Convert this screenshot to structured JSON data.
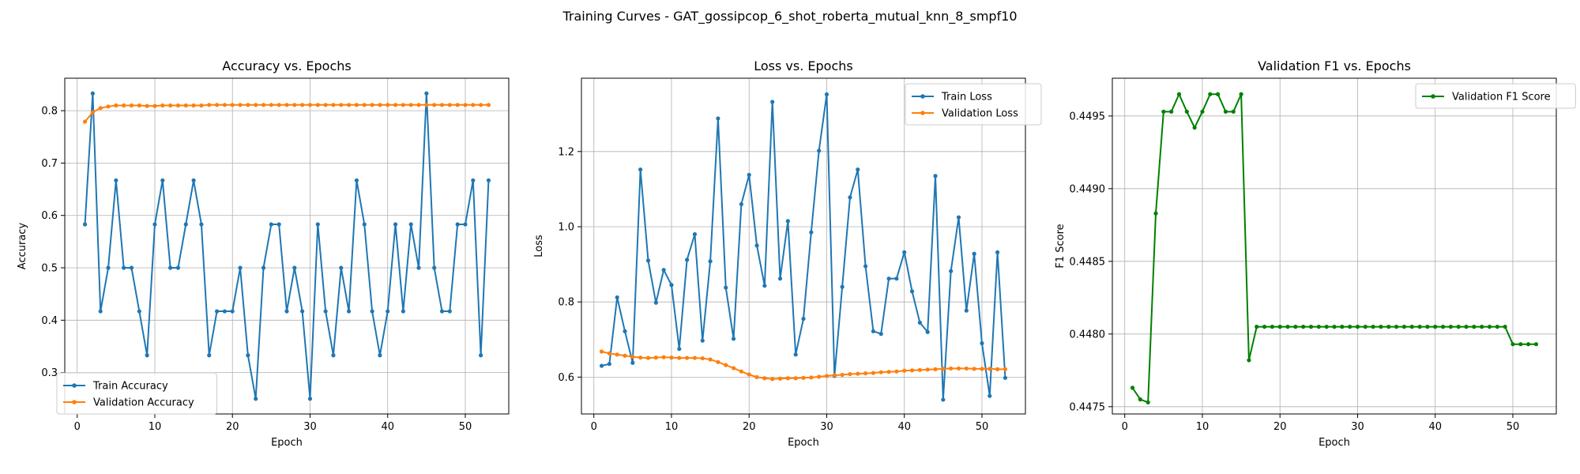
{
  "suptitle": "Training Curves - GAT_gossipcop_6_shot_roberta_mutual_knn_8_smpf10",
  "colors": {
    "blue": "#1f77b4",
    "orange": "#ff7f0e",
    "green": "#008000",
    "grid": "#b0b0b0"
  },
  "chart_data": [
    {
      "type": "line",
      "title": "Accuracy vs. Epochs",
      "xlabel": "Epoch",
      "ylabel": "Accuracy",
      "xlim": [
        -1.6,
        55.6
      ],
      "ylim": [
        0.221,
        0.862
      ],
      "xticks": [
        0,
        10,
        20,
        30,
        40,
        50
      ],
      "yticks": [
        0.3,
        0.4,
        0.5,
        0.6,
        0.7,
        0.8
      ],
      "ytick_labels": [
        "0.3",
        "0.4",
        "0.5",
        "0.6",
        "0.7",
        "0.8"
      ],
      "grid": true,
      "legend": "lower-left",
      "x": [
        1,
        2,
        3,
        4,
        5,
        6,
        7,
        8,
        9,
        10,
        11,
        12,
        13,
        14,
        15,
        16,
        17,
        18,
        19,
        20,
        21,
        22,
        23,
        24,
        25,
        26,
        27,
        28,
        29,
        30,
        31,
        32,
        33,
        34,
        35,
        36,
        37,
        38,
        39,
        40,
        41,
        42,
        43,
        44,
        45,
        46,
        47,
        48,
        49,
        50,
        51,
        52,
        53
      ],
      "series": [
        {
          "name": "Train Accuracy",
          "color": "blue",
          "values": [
            0.583,
            0.833,
            0.417,
            0.5,
            0.667,
            0.5,
            0.5,
            0.417,
            0.333,
            0.583,
            0.667,
            0.5,
            0.5,
            0.583,
            0.667,
            0.583,
            0.333,
            0.417,
            0.417,
            0.417,
            0.5,
            0.333,
            0.25,
            0.5,
            0.583,
            0.583,
            0.417,
            0.5,
            0.417,
            0.25,
            0.583,
            0.417,
            0.333,
            0.5,
            0.417,
            0.667,
            0.583,
            0.417,
            0.333,
            0.417,
            0.583,
            0.417,
            0.583,
            0.5,
            0.833,
            0.5,
            0.417,
            0.417,
            0.583,
            0.583,
            0.667,
            0.333,
            0.667
          ]
        },
        {
          "name": "Validation Accuracy",
          "color": "orange",
          "values": [
            0.779,
            0.797,
            0.805,
            0.808,
            0.81,
            0.81,
            0.81,
            0.81,
            0.809,
            0.809,
            0.81,
            0.81,
            0.81,
            0.81,
            0.81,
            0.81,
            0.811,
            0.811,
            0.811,
            0.811,
            0.811,
            0.811,
            0.811,
            0.811,
            0.811,
            0.811,
            0.811,
            0.811,
            0.811,
            0.811,
            0.811,
            0.811,
            0.811,
            0.811,
            0.811,
            0.811,
            0.811,
            0.811,
            0.811,
            0.811,
            0.811,
            0.811,
            0.811,
            0.811,
            0.811,
            0.811,
            0.811,
            0.811,
            0.811,
            0.811,
            0.811,
            0.811,
            0.811
          ]
        }
      ]
    },
    {
      "type": "line",
      "title": "Loss vs. Epochs",
      "xlabel": "Epoch",
      "ylabel": "Loss",
      "xlim": [
        -1.6,
        55.6
      ],
      "ylim": [
        0.502,
        1.395
      ],
      "xticks": [
        0,
        10,
        20,
        30,
        40,
        50
      ],
      "yticks": [
        0.6,
        0.8,
        1.0,
        1.2
      ],
      "ytick_labels": [
        "0.6",
        "0.8",
        "1.0",
        "1.2"
      ],
      "grid": true,
      "legend": "upper-right",
      "x": [
        1,
        2,
        3,
        4,
        5,
        6,
        7,
        8,
        9,
        10,
        11,
        12,
        13,
        14,
        15,
        16,
        17,
        18,
        19,
        20,
        21,
        22,
        23,
        24,
        25,
        26,
        27,
        28,
        29,
        30,
        31,
        32,
        33,
        34,
        35,
        36,
        37,
        38,
        39,
        40,
        41,
        42,
        43,
        44,
        45,
        46,
        47,
        48,
        49,
        50,
        51,
        52,
        53
      ],
      "series": [
        {
          "name": "Train Loss",
          "color": "blue",
          "values": [
            0.63,
            0.635,
            0.812,
            0.722,
            0.638,
            1.152,
            0.91,
            0.798,
            0.885,
            0.845,
            0.675,
            0.912,
            0.98,
            0.697,
            0.908,
            1.288,
            0.838,
            0.702,
            1.06,
            1.138,
            0.95,
            0.843,
            1.332,
            0.862,
            1.015,
            0.66,
            0.755,
            0.985,
            1.202,
            1.352,
            0.603,
            0.84,
            1.078,
            1.152,
            0.895,
            0.722,
            0.715,
            0.862,
            0.862,
            0.932,
            0.828,
            0.745,
            0.72,
            1.135,
            0.54,
            0.882,
            1.025,
            0.777,
            0.928,
            0.69,
            0.55,
            0.932,
            0.598
          ]
        },
        {
          "name": "Validation Loss",
          "color": "orange",
          "values": [
            0.668,
            0.663,
            0.66,
            0.657,
            0.654,
            0.652,
            0.651,
            0.652,
            0.653,
            0.652,
            0.651,
            0.651,
            0.651,
            0.65,
            0.647,
            0.64,
            0.632,
            0.624,
            0.615,
            0.607,
            0.6,
            0.597,
            0.595,
            0.596,
            0.597,
            0.597,
            0.598,
            0.599,
            0.601,
            0.603,
            0.605,
            0.606,
            0.608,
            0.609,
            0.61,
            0.611,
            0.613,
            0.614,
            0.615,
            0.617,
            0.618,
            0.619,
            0.62,
            0.621,
            0.622,
            0.623,
            0.623,
            0.623,
            0.622,
            0.622,
            0.622,
            0.621,
            0.621
          ]
        }
      ]
    },
    {
      "type": "line",
      "title": "Validation F1 vs. Epochs",
      "xlabel": "Epoch",
      "ylabel": "F1 Score",
      "xlim": [
        -1.6,
        55.6
      ],
      "ylim": [
        0.44745,
        0.44976
      ],
      "xticks": [
        0,
        10,
        20,
        30,
        40,
        50
      ],
      "yticks": [
        0.4475,
        0.448,
        0.4485,
        0.449,
        0.4495
      ],
      "ytick_labels": [
        "0.4475",
        "0.4480",
        "0.4485",
        "0.4490",
        "0.4495"
      ],
      "grid": true,
      "legend": "upper-right",
      "x": [
        1,
        2,
        3,
        4,
        5,
        6,
        7,
        8,
        9,
        10,
        11,
        12,
        13,
        14,
        15,
        16,
        17,
        18,
        19,
        20,
        21,
        22,
        23,
        24,
        25,
        26,
        27,
        28,
        29,
        30,
        31,
        32,
        33,
        34,
        35,
        36,
        37,
        38,
        39,
        40,
        41,
        42,
        43,
        44,
        45,
        46,
        47,
        48,
        49,
        50,
        51,
        52,
        53
      ],
      "series": [
        {
          "name": "Validation F1 Score",
          "color": "green",
          "values": [
            0.44763,
            0.44755,
            0.44753,
            0.44883,
            0.44953,
            0.44953,
            0.44965,
            0.44953,
            0.44942,
            0.44953,
            0.44965,
            0.44965,
            0.44953,
            0.44953,
            0.44965,
            0.44782,
            0.44805,
            0.44805,
            0.44805,
            0.44805,
            0.44805,
            0.44805,
            0.44805,
            0.44805,
            0.44805,
            0.44805,
            0.44805,
            0.44805,
            0.44805,
            0.44805,
            0.44805,
            0.44805,
            0.44805,
            0.44805,
            0.44805,
            0.44805,
            0.44805,
            0.44805,
            0.44805,
            0.44805,
            0.44805,
            0.44805,
            0.44805,
            0.44805,
            0.44805,
            0.44805,
            0.44805,
            0.44805,
            0.44805,
            0.44793,
            0.44793,
            0.44793,
            0.44793
          ]
        }
      ]
    }
  ]
}
